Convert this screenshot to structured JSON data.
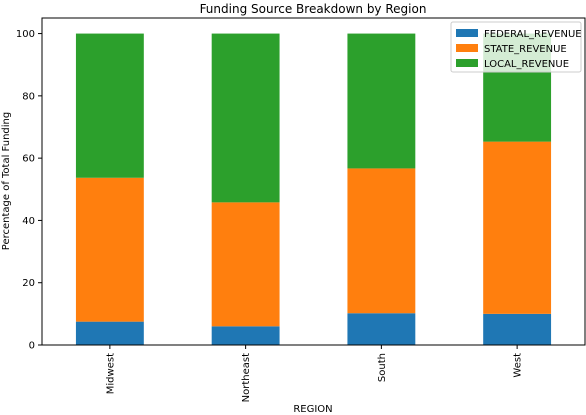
{
  "chart_data": {
    "type": "bar",
    "stacked": true,
    "title": "Funding Source Breakdown by Region",
    "xlabel": "REGION",
    "ylabel": "Percentage of Total Funding",
    "categories": [
      "Midwest",
      "Northeast",
      "South",
      "West"
    ],
    "ylim": [
      0,
      105
    ],
    "yticks": [
      0,
      20,
      40,
      60,
      80,
      100
    ],
    "grid": false,
    "legend_position": "top-right",
    "series": [
      {
        "name": "FEDERAL_REVENUE",
        "color": "#1f77b4",
        "values": [
          7.5,
          6.0,
          10.2,
          10.0
        ]
      },
      {
        "name": "STATE_REVENUE",
        "color": "#ff7f0e",
        "values": [
          46.2,
          39.8,
          46.5,
          55.3
        ]
      },
      {
        "name": "LOCAL_REVENUE",
        "color": "#2ca02c",
        "values": [
          46.3,
          54.2,
          43.3,
          34.7
        ]
      }
    ]
  }
}
